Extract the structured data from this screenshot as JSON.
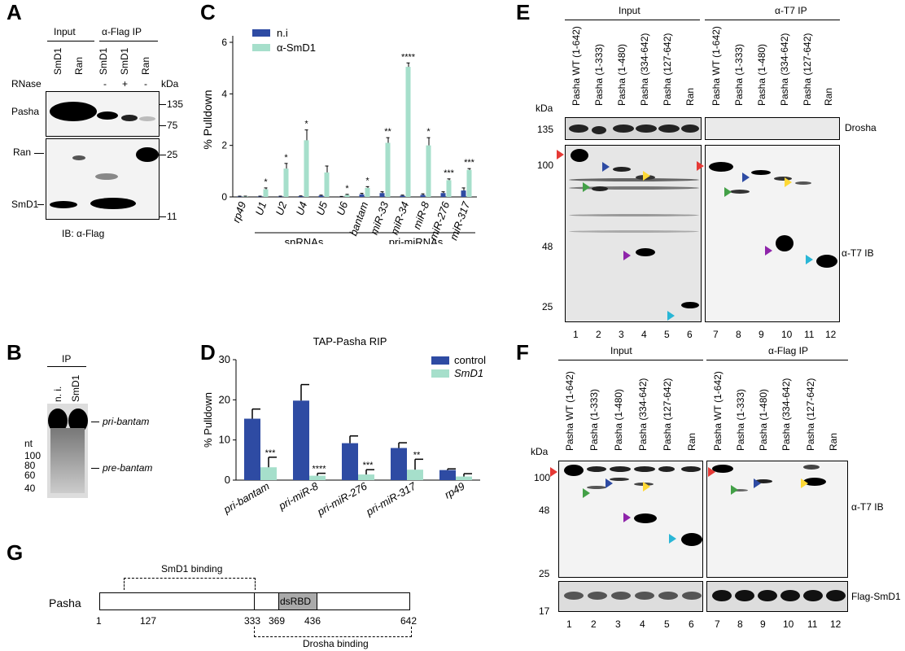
{
  "panels": {
    "A": {
      "label": "A",
      "groups": [
        "Input",
        "α-Flag IP"
      ],
      "lanes": [
        "SmD1",
        "Ran",
        "SmD1",
        "SmD1",
        "Ran"
      ],
      "rnase_label": "RNase",
      "rnase": [
        "-",
        "+",
        "-"
      ],
      "kda_label": "kDa",
      "markers": [
        "135",
        "75",
        "25",
        "11"
      ],
      "rows": [
        "Pasha",
        "Ran",
        "SmD1"
      ],
      "ib": "IB: α-Flag"
    },
    "B": {
      "label": "B",
      "ip": "IP",
      "lanes": [
        "n. i.",
        "SmD1"
      ],
      "nt": "nt",
      "markers": [
        "100",
        "80",
        "60",
        "40"
      ],
      "bands": [
        "pri-bantam",
        "pre-bantam"
      ]
    },
    "C": {
      "label": "C",
      "legend": [
        "n.i",
        "α-SmD1"
      ],
      "groups": [
        "snRNAs",
        "pri-miRNAs"
      ],
      "colors": {
        "ni": "#2e4ba3",
        "smd1": "#a6dfcb"
      }
    },
    "D": {
      "label": "D",
      "legend": [
        "control",
        "SmD1"
      ],
      "colors": {
        "control": "#2e4ba3",
        "smd1": "#a6dfcb"
      }
    },
    "E": {
      "label": "E",
      "groups": [
        "Input",
        "α-T7 IP"
      ],
      "lanes": [
        "Pasha WT (1-642)",
        "Pasha (1-333)",
        "Pasha (1-480)",
        "Pasha (334-642)",
        "Pasha (127-642)",
        "Ran",
        "Pasha WT (1-642)",
        "Pasha (1-333)",
        "Pasha (1-480)",
        "Pasha (334-642)",
        "Pasha (127-642)",
        "Ran"
      ],
      "kda_label": "kDa",
      "markers": [
        "135",
        "100",
        "48",
        "25"
      ],
      "right_labels": [
        "Drosha",
        "α-T7 IB"
      ],
      "lane_numbers": [
        "1",
        "2",
        "3",
        "4",
        "5",
        "6",
        "7",
        "8",
        "9",
        "10",
        "11",
        "12"
      ]
    },
    "F": {
      "label": "F",
      "groups": [
        "Input",
        "α-Flag IP"
      ],
      "lanes": [
        "Pasha WT (1-642)",
        "Pasha (1-333)",
        "Pasha (1-480)",
        "Pasha (334-642)",
        "Pasha (127-642)",
        "Ran",
        "Pasha WT (1-642)",
        "Pasha (1-333)",
        "Pasha (1-480)",
        "Pasha (334-642)",
        "Pasha (127-642)",
        "Ran"
      ],
      "kda_label": "kDa",
      "markers": [
        "100",
        "48",
        "25",
        "17"
      ],
      "right_labels": [
        "α-T7 IB",
        "Flag-SmD1"
      ],
      "lane_numbers": [
        "1",
        "2",
        "3",
        "4",
        "5",
        "6",
        "7",
        "8",
        "9",
        "10",
        "11",
        "12"
      ]
    },
    "G": {
      "label": "G",
      "protein": "Pasha",
      "domain": "dsRBD",
      "positions": [
        "1",
        "127",
        "333",
        "369",
        "436",
        "642"
      ],
      "smd1_binding": "SmD1 binding",
      "drosha_binding": "Drosha binding"
    }
  },
  "chart_data": [
    {
      "id": "C",
      "type": "bar",
      "title": "",
      "xlabel": "",
      "ylabel": "% Pulldown",
      "ylim": [
        0,
        6
      ],
      "yticks": [
        0,
        2,
        4,
        6
      ],
      "grid": false,
      "legend_position": "top-left",
      "categories": [
        "rp49",
        "U1",
        "U2",
        "U4",
        "U5",
        "U6",
        "bantam",
        "miR-33",
        "miR-34",
        "miR-8",
        "miR-276",
        "miR-317"
      ],
      "series": [
        {
          "name": "n.i",
          "values": [
            0.02,
            0.02,
            0.02,
            0.03,
            0.05,
            0.01,
            0.1,
            0.15,
            0.05,
            0.08,
            0.15,
            0.25
          ],
          "errors": [
            0.01,
            0.01,
            0.01,
            0.01,
            0.02,
            0.01,
            0.04,
            0.05,
            0.02,
            0.04,
            0.05,
            0.1
          ]
        },
        {
          "name": "α-SmD1",
          "values": [
            0.02,
            0.3,
            1.1,
            2.2,
            0.95,
            0.08,
            0.35,
            2.1,
            5.05,
            2.0,
            0.65,
            1.05
          ],
          "errors": [
            0.01,
            0.05,
            0.2,
            0.4,
            0.25,
            0.02,
            0.05,
            0.2,
            0.15,
            0.3,
            0.05,
            0.05
          ]
        }
      ],
      "significance": [
        "",
        "*",
        "*",
        "*",
        "",
        "*",
        "*",
        "**",
        "****",
        "*",
        "***",
        "***"
      ],
      "groups": [
        {
          "label": "snRNAs",
          "from": "U1",
          "to": "U6"
        },
        {
          "label": "pri-miRNAs",
          "from": "bantam",
          "to": "miR-317"
        }
      ]
    },
    {
      "id": "D",
      "type": "bar",
      "title": "TAP-Pasha RIP",
      "xlabel": "",
      "ylabel": "% Pulldown",
      "ylim": [
        0,
        30
      ],
      "yticks": [
        0,
        10,
        20,
        30
      ],
      "grid": false,
      "legend_position": "top-right",
      "categories": [
        "pri-bantam",
        "pri-miR-8",
        "pri-miR-276",
        "pri-miR-317",
        "rp49"
      ],
      "series": [
        {
          "name": "control",
          "values": [
            15.3,
            19.8,
            9.2,
            8.0,
            2.5
          ],
          "errors": [
            2.4,
            4.0,
            1.8,
            1.3,
            0.3
          ]
        },
        {
          "name": "SmD1",
          "values": [
            3.2,
            1.1,
            1.4,
            2.6,
            0.9
          ],
          "errors": [
            2.5,
            0.6,
            1.2,
            2.6,
            0.7
          ]
        }
      ],
      "significance": [
        "***",
        "****",
        "***",
        "**",
        ""
      ]
    }
  ]
}
